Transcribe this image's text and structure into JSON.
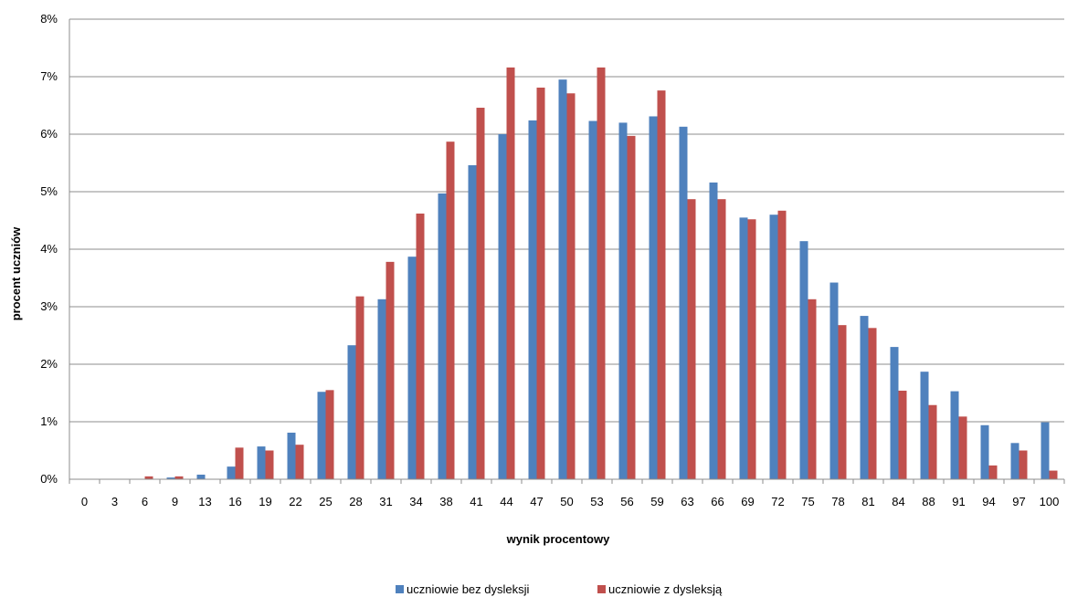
{
  "chart_data": {
    "type": "bar",
    "title": "",
    "xlabel": "wynik procentowy",
    "ylabel": "procent  uczniów",
    "ylim": [
      0,
      8
    ],
    "y_ticks": [
      "0%",
      "1%",
      "2%",
      "3%",
      "4%",
      "5%",
      "6%",
      "7%",
      "8%"
    ],
    "grid": true,
    "legend_position": "bottom",
    "categories": [
      "0",
      "3",
      "6",
      "9",
      "13",
      "16",
      "19",
      "22",
      "25",
      "28",
      "31",
      "34",
      "38",
      "41",
      "44",
      "47",
      "50",
      "53",
      "56",
      "59",
      "63",
      "66",
      "69",
      "72",
      "75",
      "78",
      "81",
      "84",
      "88",
      "91",
      "94",
      "97",
      "100"
    ],
    "series": [
      {
        "name": "uczniowie bez dysleksji",
        "color": "#4F81BD",
        "values": [
          0,
          0,
          0,
          0.03,
          0.08,
          0.22,
          0.57,
          0.81,
          1.52,
          2.33,
          3.13,
          3.87,
          4.97,
          5.46,
          6.0,
          6.24,
          6.95,
          6.23,
          6.2,
          6.31,
          6.13,
          5.16,
          4.55,
          4.6,
          4.14,
          3.42,
          2.84,
          2.3,
          1.87,
          1.53,
          0.94,
          0.63,
          0.99
        ]
      },
      {
        "name": "uczniowie z dysleksją",
        "color": "#C0504D",
        "values": [
          0,
          0,
          0.05,
          0.05,
          0,
          0.55,
          0.5,
          0.6,
          1.55,
          3.18,
          3.78,
          4.62,
          5.87,
          6.46,
          7.16,
          6.81,
          6.71,
          7.16,
          5.97,
          6.76,
          4.87,
          4.87,
          4.52,
          4.67,
          3.13,
          2.68,
          2.63,
          1.54,
          1.29,
          1.09,
          0.24,
          0.5,
          0.15
        ]
      }
    ]
  }
}
